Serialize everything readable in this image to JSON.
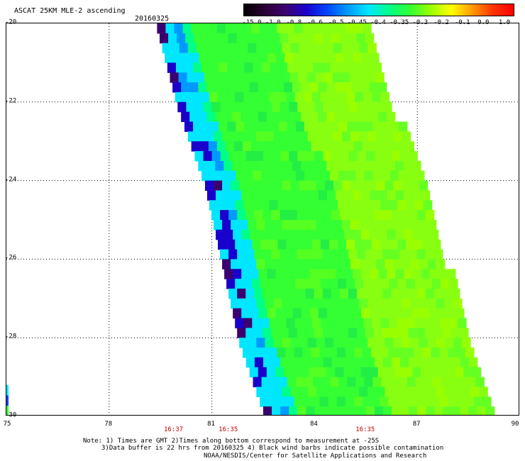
{
  "header": {
    "title": "ASCAT 25KM MLE-2 ascending",
    "date": "20160325"
  },
  "colorbar": {
    "labels": [
      "-15.0",
      "-1.0",
      "-0.8",
      "-0.6",
      "-0.5",
      "-0.45",
      "-0.4",
      "-0.35",
      "-0.3",
      "-0.2",
      "-0.1",
      "0.0",
      "1.0"
    ],
    "colors": [
      "#000000",
      "#2a0033",
      "#3b0070",
      "#1a00cc",
      "#0044ff",
      "#0099ff",
      "#00e6ff",
      "#00ff88",
      "#33ff33",
      "#99ff00",
      "#ffff00",
      "#ff9900",
      "#ff3300",
      "#ff0000"
    ]
  },
  "axes": {
    "x_ticks": [
      "75",
      "78",
      "81",
      "84",
      "87",
      "90"
    ],
    "y_ticks": [
      "-20",
      "-22",
      "-24",
      "-26",
      "-28",
      "-30"
    ],
    "x_range": [
      75,
      90
    ],
    "y_range": [
      -20,
      -30
    ]
  },
  "times": [
    {
      "label": "16:37",
      "lon": 79.9
    },
    {
      "label": "16:35",
      "lon": 81.5
    },
    {
      "label": "16:35",
      "lon": 85.5
    }
  ],
  "notes": {
    "line1": "Note: 1) Times are GMT 2)Times along bottom correspond to measurement at -25S",
    "line2": "3)Data buffer is 22 hrs from 20160325 4) Black wind barbs indicate possible contamination",
    "credit": "NOAA/NESDIS/Center for Satellite Applications and Research"
  },
  "swath": {
    "left_edge": [
      [
        -20,
        79.4
      ],
      [
        -22,
        80.0
      ],
      [
        -24,
        80.8
      ],
      [
        -26,
        81.3
      ],
      [
        -28,
        81.8
      ],
      [
        -30,
        82.6
      ]
    ],
    "right_edge": [
      [
        -20,
        85.5
      ],
      [
        -22,
        86.2
      ],
      [
        -24,
        87.3
      ],
      [
        -26,
        87.8
      ],
      [
        -28,
        88.5
      ],
      [
        -30,
        89.2
      ]
    ],
    "edge_strip": {
      "lon": 75.0,
      "lat_range": [
        -29.2,
        -30
      ],
      "colors": [
        "#00e6ff",
        "#0044ff",
        "#33ff33"
      ]
    }
  }
}
